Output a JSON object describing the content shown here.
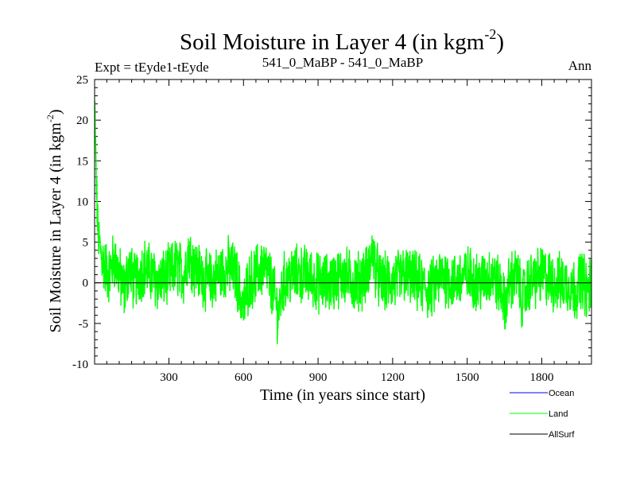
{
  "chart_data": {
    "type": "line",
    "title": "Soil Moisture in Layer 4 (in kgm",
    "title_sup": "-2",
    "title_close": ")",
    "subtitle_left": "Expt = tEyde1-tEyde",
    "subtitle_center": "541_0_MaBP - 541_0_MaBP",
    "subtitle_right": "Ann",
    "xlabel": "Time (in years since start)",
    "ylabel": "Soil Moisture in Layer 4 (in kgm",
    "ylabel_sup": "-2",
    "ylabel_close": ")",
    "xlim": [
      1,
      2000
    ],
    "ylim": [
      -10,
      25
    ],
    "x_ticks": [
      300,
      600,
      900,
      1200,
      1500,
      1800
    ],
    "x_tick_labels": [
      "300",
      "600",
      "900",
      "1200",
      "1500",
      "1800"
    ],
    "y_ticks": [
      -10,
      -5,
      0,
      5,
      10,
      15,
      20,
      25
    ],
    "y_tick_labels": [
      "-10",
      "-5",
      "0",
      "5",
      "10",
      "15",
      "20",
      "25"
    ],
    "zero_line": 0,
    "legend_position": "bottom-right",
    "series": [
      {
        "name": "Ocean",
        "color": "#0000ff",
        "values": []
      },
      {
        "name": "Land",
        "color": "#00ff00",
        "x": [
          1,
          8,
          15,
          25,
          40,
          60,
          80,
          100,
          120,
          140,
          160,
          180,
          200,
          230,
          260,
          300,
          330,
          360,
          380,
          400,
          430,
          460,
          500,
          540,
          570,
          590,
          600,
          620,
          650,
          680,
          700,
          720,
          740,
          760,
          800,
          850,
          900,
          950,
          1000,
          1050,
          1100,
          1120,
          1130,
          1150,
          1200,
          1250,
          1300,
          1350,
          1400,
          1450,
          1500,
          1550,
          1600,
          1640,
          1650,
          1670,
          1700,
          1720,
          1750,
          1800,
          1850,
          1900,
          1940,
          1960,
          1980,
          2000
        ],
        "values": [
          22,
          12,
          6,
          4,
          2,
          1,
          3,
          1,
          -1,
          2,
          0,
          1,
          2,
          1,
          0,
          1,
          2,
          1,
          4,
          2,
          1,
          0,
          1,
          2,
          1,
          -2,
          -3,
          0,
          1,
          2,
          1,
          -1,
          -4,
          0,
          1,
          1,
          0,
          0,
          1,
          0,
          1,
          4,
          2,
          0,
          0,
          1,
          0,
          -1,
          1,
          0,
          1,
          0,
          1,
          -1,
          -3,
          0,
          1,
          -2,
          0,
          1,
          0,
          0,
          -1,
          1,
          -1,
          0
        ]
      },
      {
        "name": "AllSurf",
        "color": "#000000",
        "values": []
      }
    ]
  }
}
